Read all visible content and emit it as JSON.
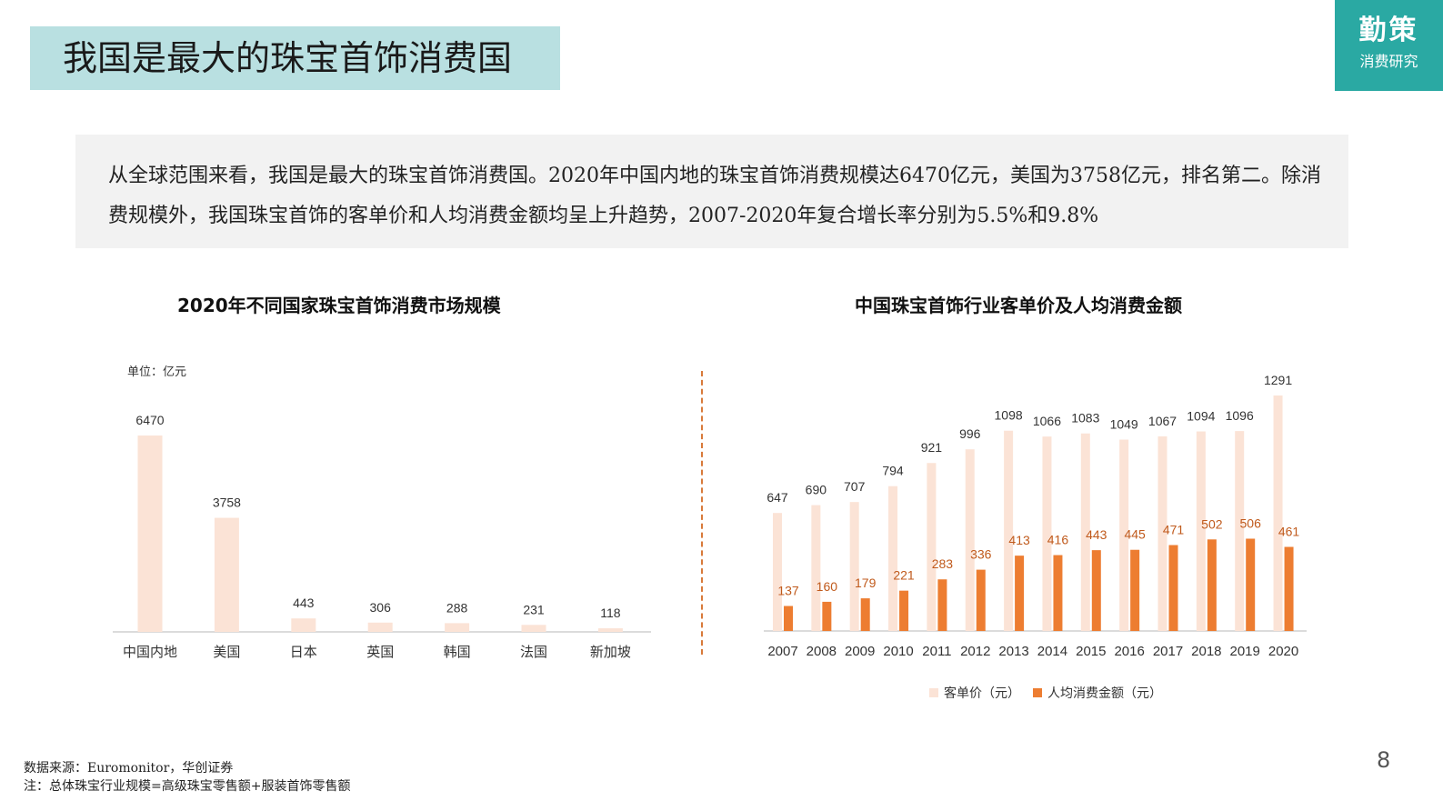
{
  "header": {
    "title": "我国是最大的珠宝首饰消费国",
    "logo_main": "勤策",
    "logo_sub": "消费研究"
  },
  "summary": {
    "text": "从全球范围来看，我国是最大的珠宝首饰消费国。2020年中国内地的珠宝首饰消费规模达6470亿元，美国为3758亿元，排名第二。除消费规模外，我国珠宝首饰的客单价和人均消费金额均呈上升趋势，2007-2020年复合增长率分别为5.5%和9.8%"
  },
  "colors": {
    "title_bg": "#b9e0e1",
    "logo_bg": "#2aa9a3",
    "light_bar": "#fbe3d6",
    "dark_bar": "#ed7d31",
    "divider": "#d87a3a"
  },
  "chart_data": [
    {
      "type": "bar",
      "title": "2020年不同国家珠宝首饰消费市场规模",
      "unit_label": "单位：亿元",
      "categories": [
        "中国内地",
        "美国",
        "日本",
        "英国",
        "韩国",
        "法国",
        "新加坡"
      ],
      "values": [
        6470,
        3758,
        443,
        306,
        288,
        231,
        118
      ],
      "ylim": [
        0,
        6470
      ],
      "grid": false
    },
    {
      "type": "bar",
      "title": "中国珠宝首饰行业客单价及人均消费金额",
      "categories": [
        "2007",
        "2008",
        "2009",
        "2010",
        "2011",
        "2012",
        "2013",
        "2014",
        "2015",
        "2016",
        "2017",
        "2018",
        "2019",
        "2020"
      ],
      "series": [
        {
          "name": "客单价（元）",
          "values": [
            647,
            690,
            707,
            794,
            921,
            996,
            1098,
            1066,
            1083,
            1049,
            1067,
            1094,
            1096,
            1291
          ]
        },
        {
          "name": "人均消费金额（元）",
          "values": [
            137,
            160,
            179,
            221,
            283,
            336,
            413,
            416,
            443,
            445,
            471,
            502,
            506,
            461
          ]
        }
      ],
      "ylim": [
        0,
        1291
      ],
      "grid": false,
      "legend": "bottom"
    }
  ],
  "footer": {
    "source": "数据来源：Euromonitor，华创证券",
    "note": "注：总体珠宝行业规模=高级珠宝零售额+服装首饰零售额",
    "page_number": "8"
  }
}
